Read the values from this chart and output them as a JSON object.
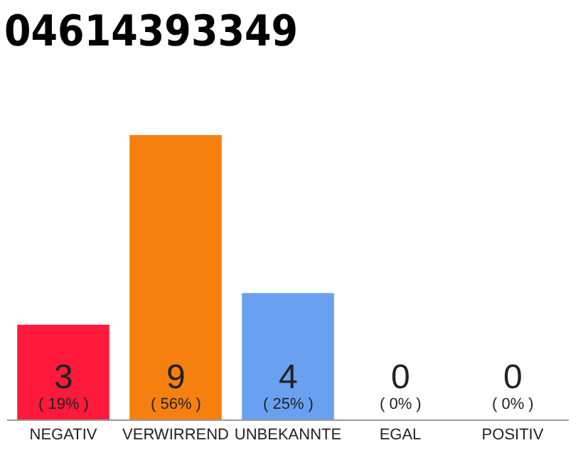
{
  "chart_data": {
    "type": "bar",
    "title": "04614393349",
    "categories": [
      "NEGATIV",
      "VERWIRREND",
      "UNBEKANNTE",
      "EGAL",
      "POSITIV"
    ],
    "values": [
      3,
      9,
      4,
      0,
      0
    ],
    "colors": [
      "#ff1a3c",
      "#f5800f",
      "#6aa0f0",
      "#eeeeee",
      "#eeeeee"
    ],
    "value_labels": [
      "3\n( 19% )",
      "9\n( 56% )",
      "4\n( 25% )",
      "0\n( 0% )",
      "0\n( 0% )"
    ],
    "ylim": [
      0,
      9
    ],
    "grid": false,
    "legend": false
  }
}
